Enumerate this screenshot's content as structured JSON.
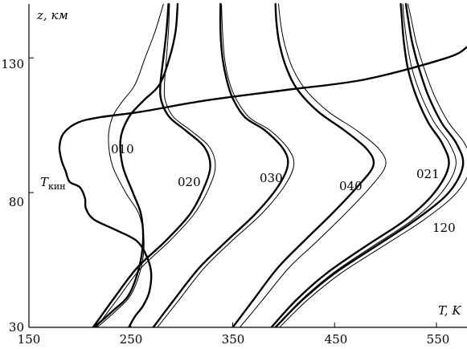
{
  "chart_data": {
    "type": "line",
    "title": "",
    "xlabel": "T, K",
    "ylabel": "z, км",
    "xlim": [
      150,
      580
    ],
    "ylim": [
      30,
      150
    ],
    "x_ticks": [
      "150",
      "250",
      "350",
      "450",
      "550"
    ],
    "y_ticks": [
      "30",
      "80",
      "130"
    ],
    "grid": false,
    "legend": "none",
    "curve_label_T": "T",
    "curve_label_T_sub": "кин",
    "series": [
      {
        "name": "010",
        "thick": [
          [
            214,
            30
          ],
          [
            232,
            36
          ],
          [
            248,
            42
          ],
          [
            258,
            52
          ],
          [
            262,
            62
          ],
          [
            260,
            72
          ],
          [
            252,
            80
          ],
          [
            242,
            90
          ],
          [
            240,
            100
          ],
          [
            248,
            108
          ],
          [
            262,
            114
          ],
          [
            278,
            120
          ],
          [
            288,
            130
          ],
          [
            294,
            140
          ],
          [
            296,
            150
          ]
        ],
        "thin": [
          [
            217,
            30
          ],
          [
            235,
            36
          ],
          [
            250,
            42
          ],
          [
            260,
            52
          ],
          [
            263,
            62
          ],
          [
            258,
            72
          ],
          [
            245,
            80
          ],
          [
            232,
            90
          ],
          [
            228,
            100
          ],
          [
            232,
            108
          ],
          [
            242,
            114
          ],
          [
            254,
            120
          ],
          [
            264,
            130
          ],
          [
            274,
            140
          ],
          [
            282,
            150
          ]
        ]
      },
      {
        "name": "020",
        "thick": [
          [
            213,
            30
          ],
          [
            232,
            40
          ],
          [
            256,
            52
          ],
          [
            284,
            62
          ],
          [
            308,
            72
          ],
          [
            322,
            82
          ],
          [
            328,
            90
          ],
          [
            322,
            97
          ],
          [
            304,
            103
          ],
          [
            288,
            108
          ],
          [
            280,
            114
          ],
          [
            279,
            120
          ],
          [
            282,
            130
          ],
          [
            285,
            140
          ],
          [
            287,
            150
          ]
        ],
        "thin": [
          [
            216,
            30
          ],
          [
            236,
            40
          ],
          [
            260,
            52
          ],
          [
            288,
            62
          ],
          [
            312,
            72
          ],
          [
            327,
            82
          ],
          [
            333,
            90
          ],
          [
            327,
            97
          ],
          [
            309,
            103
          ],
          [
            292,
            108
          ],
          [
            284,
            114
          ],
          [
            283,
            120
          ],
          [
            285,
            130
          ],
          [
            287,
            140
          ],
          [
            288,
            150
          ]
        ]
      },
      {
        "name": "030",
        "thick": [
          [
            272,
            30
          ],
          [
            292,
            40
          ],
          [
            317,
            52
          ],
          [
            344,
            62
          ],
          [
            372,
            72
          ],
          [
            394,
            82
          ],
          [
            404,
            90
          ],
          [
            400,
            96
          ],
          [
            382,
            103
          ],
          [
            362,
            108
          ],
          [
            350,
            115
          ],
          [
            344,
            122
          ],
          [
            340,
            130
          ],
          [
            338,
            140
          ],
          [
            338,
            150
          ]
        ],
        "thin": [
          [
            276,
            30
          ],
          [
            297,
            40
          ],
          [
            322,
            52
          ],
          [
            349,
            62
          ],
          [
            378,
            72
          ],
          [
            400,
            82
          ],
          [
            410,
            90
          ],
          [
            405,
            96
          ],
          [
            387,
            103
          ],
          [
            366,
            108
          ],
          [
            353,
            115
          ],
          [
            346,
            122
          ],
          [
            342,
            130
          ],
          [
            340,
            140
          ],
          [
            339,
            150
          ]
        ]
      },
      {
        "name": "040",
        "thick": [
          [
            350,
            30
          ],
          [
            370,
            40
          ],
          [
            394,
            52
          ],
          [
            420,
            62
          ],
          [
            447,
            72
          ],
          [
            472,
            82
          ],
          [
            488,
            90
          ],
          [
            482,
            96
          ],
          [
            460,
            103
          ],
          [
            434,
            110
          ],
          [
            414,
            118
          ],
          [
            403,
            126
          ],
          [
            396,
            135
          ],
          [
            393,
            143
          ],
          [
            392,
            150
          ]
        ],
        "thin": [
          [
            357,
            30
          ],
          [
            379,
            40
          ],
          [
            405,
            52
          ],
          [
            433,
            62
          ],
          [
            460,
            72
          ],
          [
            485,
            82
          ],
          [
            500,
            90
          ],
          [
            494,
            96
          ],
          [
            472,
            103
          ],
          [
            444,
            110
          ],
          [
            422,
            118
          ],
          [
            409,
            126
          ],
          [
            401,
            135
          ],
          [
            397,
            143
          ],
          [
            395,
            150
          ]
        ]
      },
      {
        "name": "021",
        "thick": [
          [
            388,
            30
          ],
          [
            412,
            40
          ],
          [
            442,
            50
          ],
          [
            480,
            60
          ],
          [
            520,
            70
          ],
          [
            548,
            80
          ],
          [
            562,
            90
          ],
          [
            556,
            98
          ],
          [
            542,
            106
          ],
          [
            530,
            116
          ],
          [
            522,
            126
          ],
          [
            518,
            136
          ],
          [
            516,
            145
          ],
          [
            515,
            150
          ]
        ],
        "thin": [
          [
            392,
            30
          ],
          [
            417,
            40
          ],
          [
            448,
            50
          ],
          [
            487,
            60
          ],
          [
            527,
            70
          ],
          [
            555,
            80
          ],
          [
            569,
            90
          ],
          [
            563,
            98
          ],
          [
            548,
            106
          ],
          [
            535,
            116
          ],
          [
            526,
            126
          ],
          [
            521,
            136
          ],
          [
            518,
            145
          ],
          [
            517,
            150
          ]
        ]
      },
      {
        "name": "120",
        "thick": [
          [
            392,
            30
          ],
          [
            418,
            40
          ],
          [
            450,
            50
          ],
          [
            490,
            60
          ],
          [
            530,
            70
          ],
          [
            562,
            80
          ],
          [
            576,
            90
          ],
          [
            570,
            98
          ],
          [
            555,
            106
          ],
          [
            542,
            116
          ],
          [
            533,
            126
          ],
          [
            526,
            136
          ],
          [
            522,
            145
          ],
          [
            520,
            150
          ]
        ],
        "thin": [
          [
            396,
            30
          ],
          [
            423,
            40
          ],
          [
            456,
            50
          ],
          [
            497,
            60
          ],
          [
            538,
            70
          ],
          [
            570,
            80
          ],
          [
            584,
            90
          ],
          [
            578,
            98
          ],
          [
            562,
            106
          ],
          [
            548,
            116
          ],
          [
            538,
            126
          ],
          [
            530,
            136
          ],
          [
            525,
            145
          ],
          [
            522,
            150
          ]
        ]
      },
      {
        "name": "T_kin",
        "thick": [
          [
            248,
            30
          ],
          [
            254,
            34
          ],
          [
            262,
            38
          ],
          [
            268,
            43
          ],
          [
            270,
            50
          ],
          [
            266,
            56
          ],
          [
            256,
            62
          ],
          [
            236,
            66
          ],
          [
            214,
            70
          ],
          [
            206,
            74
          ],
          [
            205,
            78
          ],
          [
            200,
            82
          ],
          [
            190,
            84
          ],
          [
            186,
            88
          ],
          [
            182,
            92
          ],
          [
            180,
            97
          ],
          [
            184,
            102
          ],
          [
            198,
            106
          ],
          [
            220,
            108
          ],
          [
            260,
            110
          ],
          [
            320,
            114
          ],
          [
            400,
            118
          ],
          [
            480,
            122
          ],
          [
            560,
            130
          ],
          [
            580,
            134
          ]
        ]
      }
    ]
  }
}
